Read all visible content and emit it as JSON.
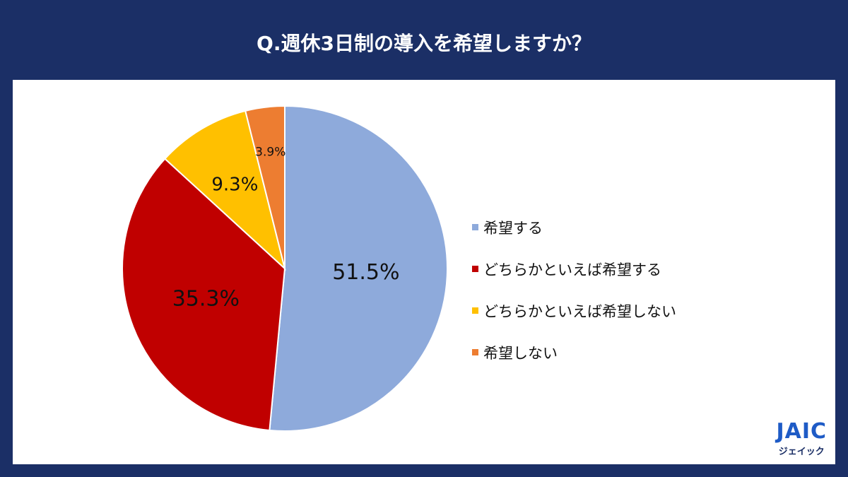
{
  "title": "Q.週休3日制の導入を希望しますか？",
  "chart_data": {
    "type": "pie",
    "title": "Q.週休3日制の導入を希望しますか？",
    "start": "12 o'clock, clockwise",
    "legend_position": "right",
    "slices": [
      {
        "label": "希望する",
        "value": 51.5,
        "display": "51.5%",
        "color": "#8eaadb"
      },
      {
        "label": "どちらかといえば希望する",
        "value": 35.3,
        "display": "35.3%",
        "color": "#c00000"
      },
      {
        "label": "どちらかといえば希望しない",
        "value": 9.3,
        "display": "9.3%",
        "color": "#ffc000"
      },
      {
        "label": "希望しない",
        "value": 3.9,
        "display": "3.9%",
        "color": "#ed7d31"
      }
    ]
  },
  "logo": {
    "mark": "JAIC",
    "kana": "ジェイック"
  }
}
